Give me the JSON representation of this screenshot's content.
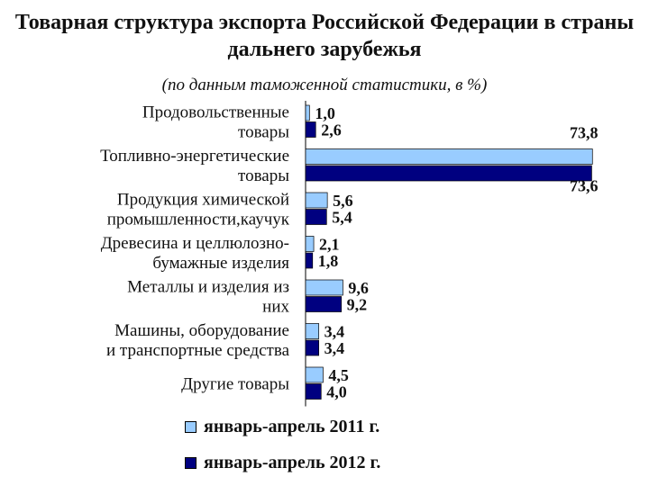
{
  "chart_data": {
    "type": "bar",
    "orientation": "horizontal",
    "title": "Товарная  структура экспорта Российской Федерации в страны дальнего зарубежья",
    "subtitle": "(по данным таможенной статистики, в %)",
    "categories": [
      [
        "Продовольственные",
        "товары"
      ],
      [
        "Топливно-энергетические",
        "товары"
      ],
      [
        "Продукция химической",
        "промышленности,каучук"
      ],
      [
        "Древесина и целлюлозно-",
        "бумажные изделия"
      ],
      [
        "Металлы и изделия из",
        "них"
      ],
      [
        "Машины, оборудование",
        "и транспортные средства"
      ],
      [
        "Другие товары"
      ]
    ],
    "series": [
      {
        "name": "январь-апрель 2011 г.",
        "color": "#99ccff",
        "values": [
          1.0,
          73.8,
          5.6,
          2.1,
          9.6,
          3.4,
          4.5
        ],
        "labels": [
          "1,0",
          "73,8",
          "5,6",
          "2,1",
          "9,6",
          "3,4",
          "4,5"
        ]
      },
      {
        "name": "январь-апрель 2012 г.",
        "color": "#000080",
        "values": [
          2.6,
          73.6,
          5.4,
          1.8,
          9.2,
          3.4,
          4.0
        ],
        "labels": [
          "2,6",
          "73,6",
          "5,4",
          "1,8",
          "9,2",
          "3,4",
          "4,0"
        ]
      }
    ],
    "xlim": [
      0,
      80
    ],
    "grid": false,
    "legend_position": "bottom"
  }
}
